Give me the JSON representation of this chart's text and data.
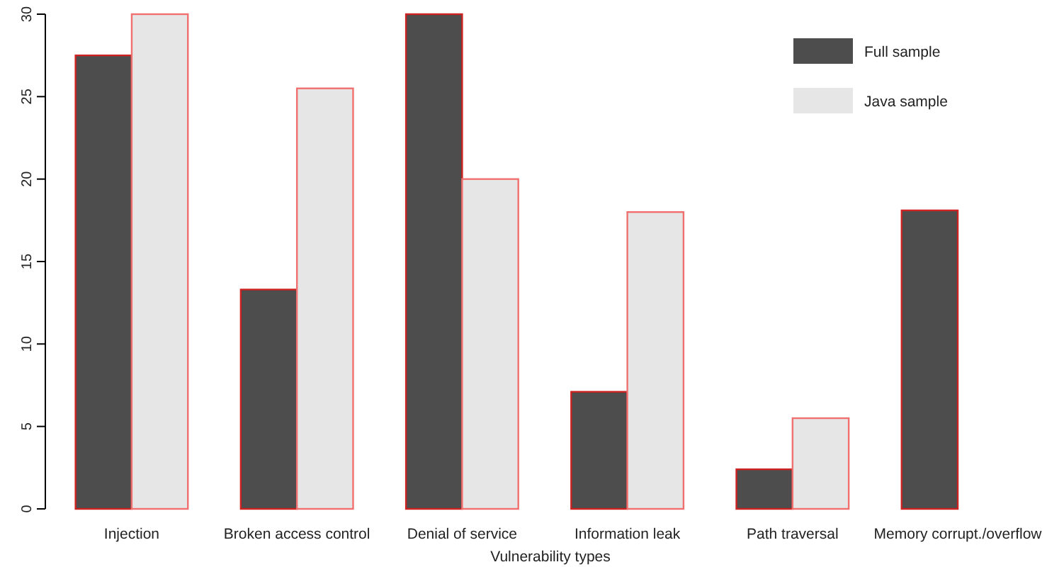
{
  "chart_data": {
    "type": "bar",
    "xlabel": "Vulnerability types",
    "categories": [
      "Injection",
      "Broken access control",
      "Denial of service",
      "Information leak",
      "Path traversal",
      "Memory corrupt./overflow"
    ],
    "series": [
      {
        "name": "Full sample",
        "color": "#4d4d4d",
        "values": [
          27.5,
          13.3,
          30,
          7.1,
          2.4,
          18.1
        ]
      },
      {
        "name": "Java sample",
        "color": "#e6e6e6",
        "values": [
          30,
          25.5,
          20,
          18,
          5.5,
          0
        ]
      }
    ],
    "ylim": [
      0,
      30
    ],
    "yticks": [
      0,
      5,
      10,
      15,
      20,
      25,
      30
    ],
    "legend": "top right",
    "grid": false
  }
}
